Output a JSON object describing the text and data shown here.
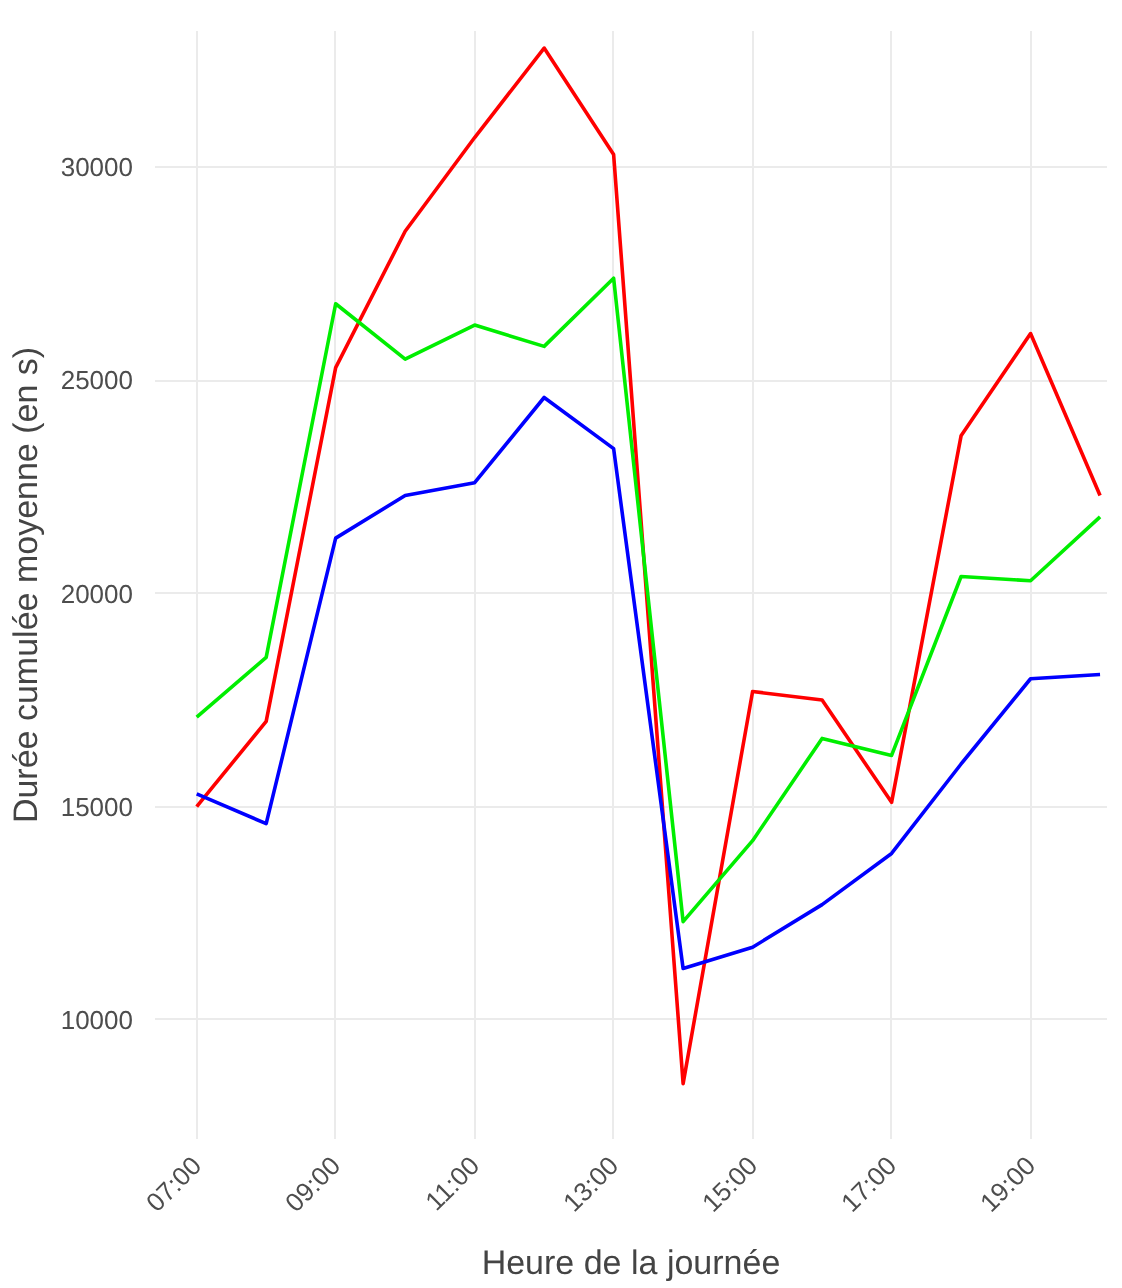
{
  "chart_data": {
    "type": "line",
    "xlabel": "Heure de la journée",
    "ylabel": "Durée cumulée moyenne (en s)",
    "x": [
      7,
      8,
      9,
      10,
      11,
      12,
      13,
      14,
      15,
      16,
      17,
      18,
      19,
      20
    ],
    "series": [
      {
        "color": "#ff0000",
        "values": [
          15000,
          17000,
          25300,
          28500,
          30700,
          32800,
          30300,
          8500,
          17700,
          17500,
          15100,
          23700,
          26100,
          22300
        ]
      },
      {
        "color": "#00ee00",
        "values": [
          17100,
          18500,
          26800,
          25500,
          26300,
          25800,
          27400,
          12300,
          14200,
          16600,
          16200,
          20400,
          20300,
          21800
        ]
      },
      {
        "color": "#0000ff",
        "values": [
          15300,
          14600,
          21300,
          22300,
          22600,
          24600,
          23400,
          11200,
          11700,
          12700,
          13900,
          16000,
          18000,
          18100
        ]
      }
    ],
    "xlim": [
      6.4,
      20.1
    ],
    "ylim": [
      7200,
      33200
    ],
    "xticks": [
      {
        "value": 7,
        "label": "07:00"
      },
      {
        "value": 9,
        "label": "09:00"
      },
      {
        "value": 11,
        "label": "11:00"
      },
      {
        "value": 13,
        "label": "13:00"
      },
      {
        "value": 15,
        "label": "15:00"
      },
      {
        "value": 17,
        "label": "17:00"
      },
      {
        "value": 19,
        "label": "19:00"
      }
    ],
    "yticks": [
      10000,
      15000,
      20000,
      25000,
      30000
    ],
    "grid": true
  }
}
